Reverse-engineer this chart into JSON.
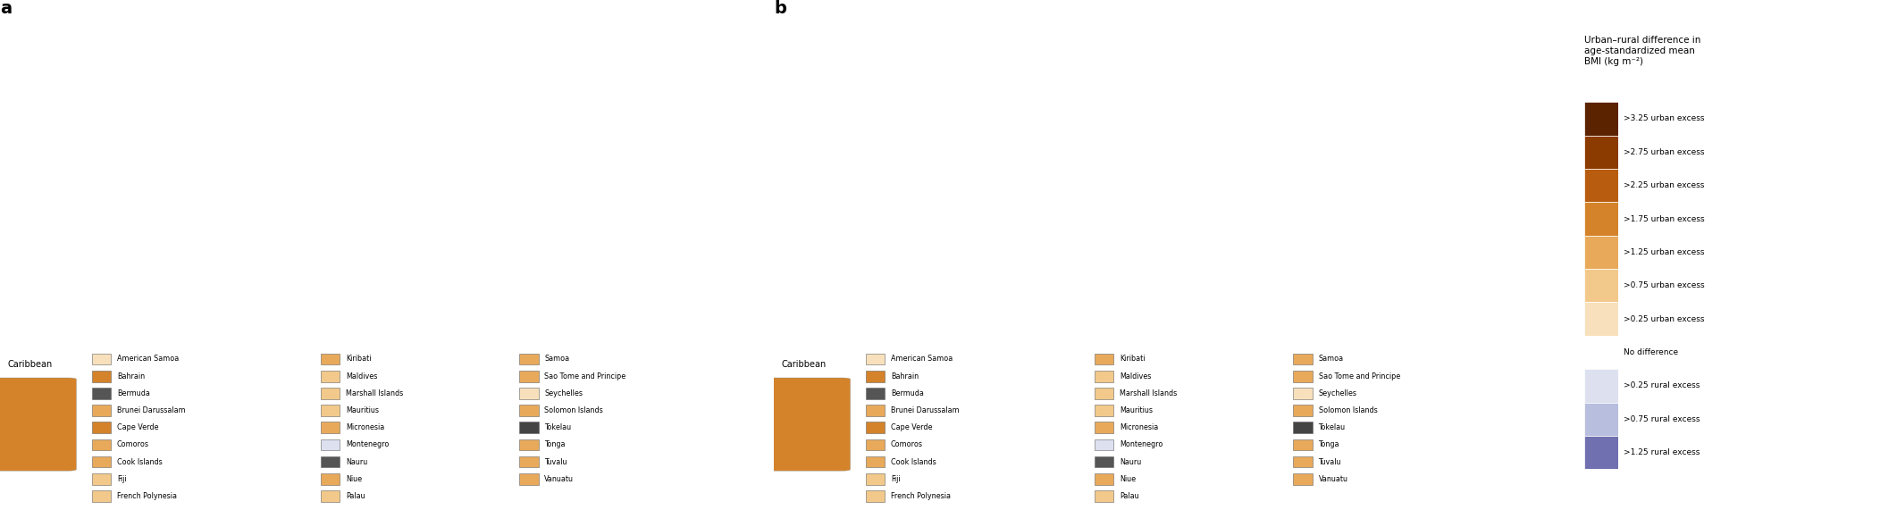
{
  "title_a": "a",
  "title_b": "b",
  "colorbar_title": "Urban–rural difference in\nage-standardized mean\nBMI (kg m⁻²)",
  "colorbar_labels": [
    ">3.25 urban excess",
    ">2.75 urban excess",
    ">2.25 urban excess",
    ">1.75 urban excess",
    ">1.25 urban excess",
    ">0.75 urban excess",
    ">0.25 urban excess",
    "No difference",
    ">0.25 rural excess",
    ">0.75 rural excess",
    ">1.25 rural excess"
  ],
  "colorbar_colors": [
    "#5c2300",
    "#8b3a00",
    "#b85c10",
    "#d4832a",
    "#e8aa5a",
    "#f2c98a",
    "#f7e0bb",
    "#ffffff",
    "#dde0ef",
    "#b8bedd",
    "#7070b0"
  ],
  "legend_items_col1": [
    [
      "American Samoa",
      "#f7e0bb"
    ],
    [
      "Bahrain",
      "#d4832a"
    ],
    [
      "Bermuda",
      "#555555"
    ],
    [
      "Brunei Darussalam",
      "#e8aa5a"
    ],
    [
      "Cape Verde",
      "#d4832a"
    ],
    [
      "Comoros",
      "#e8aa5a"
    ],
    [
      "Cook Islands",
      "#e8aa5a"
    ],
    [
      "Fiji",
      "#f2c98a"
    ],
    [
      "French Polynesia",
      "#f2c98a"
    ]
  ],
  "legend_items_col2": [
    [
      "Kiribati",
      "#e8aa5a"
    ],
    [
      "Maldives",
      "#f2c98a"
    ],
    [
      "Marshall Islands",
      "#f2c98a"
    ],
    [
      "Mauritius",
      "#f2c98a"
    ],
    [
      "Micronesia",
      "#e8aa5a"
    ],
    [
      "Montenegro",
      "#dde0ef"
    ],
    [
      "Nauru",
      "#555555"
    ],
    [
      "Niue",
      "#e8aa5a"
    ],
    [
      "Palau",
      "#f2c98a"
    ]
  ],
  "legend_items_col3": [
    [
      "Samoa",
      "#e8aa5a"
    ],
    [
      "Sao Tome and Principe",
      "#e8aa5a"
    ],
    [
      "Seychelles",
      "#f7e0bb"
    ],
    [
      "Solomon Islands",
      "#e8aa5a"
    ],
    [
      "Tokelau",
      "#444444"
    ],
    [
      "Tonga",
      "#e8aa5a"
    ],
    [
      "Tuvalu",
      "#e8aa5a"
    ],
    [
      "Vanuatu",
      "#e8aa5a"
    ]
  ],
  "caribbean_color_a": "#d4832a",
  "caribbean_color_b": "#d4832a",
  "fig_width": 21.23,
  "fig_height": 5.71,
  "background_color": "#ffffff",
  "map_edge_color": "#999999",
  "map_edge_width": 0.2,
  "ocean_color": "#ffffff",
  "no_data_color": "#e0e0e0"
}
